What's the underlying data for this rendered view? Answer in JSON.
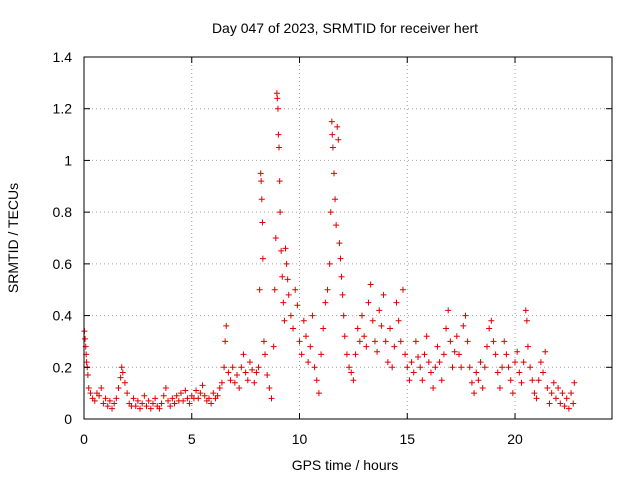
{
  "chart_data": {
    "type": "scatter",
    "title": "Day 047 of 2023, SRMTID for receiver hert",
    "xlabel": "GPS time / hours",
    "ylabel": "SRMTID / TECUs",
    "xlim": [
      0,
      24.5
    ],
    "ylim": [
      0,
      1.4
    ],
    "xticks": [
      0,
      5,
      10,
      15,
      20
    ],
    "xtick_labels": [
      "0",
      "5",
      "10",
      "15",
      "20"
    ],
    "yticks": [
      0,
      0.2,
      0.4,
      0.6,
      0.8,
      1.0,
      1.2,
      1.4
    ],
    "ytick_labels": [
      "0",
      "0.2",
      "0.4",
      "0.6",
      "0.8",
      "1",
      "1.2",
      "1.4"
    ],
    "grid": true,
    "marker": "+",
    "color": "#e00000",
    "series": [
      {
        "name": "SRMTID",
        "points": [
          [
            0.02,
            0.34
          ],
          [
            0.05,
            0.31
          ],
          [
            0.08,
            0.28
          ],
          [
            0.1,
            0.25
          ],
          [
            0.12,
            0.22
          ],
          [
            0.15,
            0.2
          ],
          [
            0.18,
            0.17
          ],
          [
            0.22,
            0.12
          ],
          [
            0.3,
            0.1
          ],
          [
            0.4,
            0.08
          ],
          [
            0.5,
            0.07
          ],
          [
            0.6,
            0.1
          ],
          [
            0.7,
            0.09
          ],
          [
            0.8,
            0.12
          ],
          [
            0.9,
            0.06
          ],
          [
            1.0,
            0.08
          ],
          [
            1.1,
            0.05
          ],
          [
            1.2,
            0.07
          ],
          [
            1.3,
            0.04
          ],
          [
            1.4,
            0.06
          ],
          [
            1.5,
            0.08
          ],
          [
            1.6,
            0.12
          ],
          [
            1.7,
            0.16
          ],
          [
            1.75,
            0.2
          ],
          [
            1.8,
            0.18
          ],
          [
            1.9,
            0.14
          ],
          [
            2.0,
            0.1
          ],
          [
            2.1,
            0.06
          ],
          [
            2.2,
            0.05
          ],
          [
            2.3,
            0.08
          ],
          [
            2.4,
            0.05
          ],
          [
            2.5,
            0.07
          ],
          [
            2.6,
            0.04
          ],
          [
            2.7,
            0.06
          ],
          [
            2.8,
            0.09
          ],
          [
            2.9,
            0.05
          ],
          [
            3.0,
            0.07
          ],
          [
            3.1,
            0.04
          ],
          [
            3.2,
            0.06
          ],
          [
            3.3,
            0.08
          ],
          [
            3.4,
            0.05
          ],
          [
            3.5,
            0.04
          ],
          [
            3.6,
            0.06
          ],
          [
            3.7,
            0.09
          ],
          [
            3.8,
            0.12
          ],
          [
            3.9,
            0.07
          ],
          [
            4.0,
            0.05
          ],
          [
            4.1,
            0.08
          ],
          [
            4.2,
            0.06
          ],
          [
            4.3,
            0.09
          ],
          [
            4.4,
            0.07
          ],
          [
            4.5,
            0.1
          ],
          [
            4.6,
            0.07
          ],
          [
            4.7,
            0.11
          ],
          [
            4.8,
            0.08
          ],
          [
            4.9,
            0.06
          ],
          [
            5.0,
            0.09
          ],
          [
            5.1,
            0.08
          ],
          [
            5.2,
            0.11
          ],
          [
            5.3,
            0.08
          ],
          [
            5.4,
            0.1
          ],
          [
            5.5,
            0.13
          ],
          [
            5.6,
            0.09
          ],
          [
            5.7,
            0.07
          ],
          [
            5.8,
            0.08
          ],
          [
            5.9,
            0.06
          ],
          [
            6.0,
            0.1
          ],
          [
            6.1,
            0.08
          ],
          [
            6.2,
            0.09
          ],
          [
            6.3,
            0.12
          ],
          [
            6.4,
            0.14
          ],
          [
            6.5,
            0.2
          ],
          [
            6.55,
            0.3
          ],
          [
            6.6,
            0.36
          ],
          [
            6.7,
            0.18
          ],
          [
            6.8,
            0.15
          ],
          [
            6.9,
            0.2
          ],
          [
            7.0,
            0.14
          ],
          [
            7.1,
            0.17
          ],
          [
            7.2,
            0.12
          ],
          [
            7.3,
            0.2
          ],
          [
            7.4,
            0.25
          ],
          [
            7.5,
            0.18
          ],
          [
            7.6,
            0.15
          ],
          [
            7.7,
            0.22
          ],
          [
            7.8,
            0.19
          ],
          [
            7.9,
            0.14
          ],
          [
            8.0,
            0.18
          ],
          [
            8.1,
            0.2
          ],
          [
            8.15,
            0.5
          ],
          [
            8.2,
            0.95
          ],
          [
            8.22,
            0.92
          ],
          [
            8.25,
            0.85
          ],
          [
            8.28,
            0.76
          ],
          [
            8.3,
            0.62
          ],
          [
            8.35,
            0.3
          ],
          [
            8.4,
            0.25
          ],
          [
            8.5,
            0.17
          ],
          [
            8.6,
            0.12
          ],
          [
            8.7,
            0.08
          ],
          [
            8.8,
            0.28
          ],
          [
            8.85,
            0.5
          ],
          [
            8.9,
            0.7
          ],
          [
            8.95,
            1.26
          ],
          [
            8.97,
            1.24
          ],
          [
            9.0,
            1.2
          ],
          [
            9.02,
            1.1
          ],
          [
            9.05,
            1.05
          ],
          [
            9.08,
            0.92
          ],
          [
            9.1,
            0.8
          ],
          [
            9.15,
            0.65
          ],
          [
            9.2,
            0.55
          ],
          [
            9.25,
            0.45
          ],
          [
            9.3,
            0.38
          ],
          [
            9.35,
            0.66
          ],
          [
            9.4,
            0.6
          ],
          [
            9.45,
            0.54
          ],
          [
            9.5,
            0.48
          ],
          [
            9.6,
            0.4
          ],
          [
            9.7,
            0.35
          ],
          [
            9.8,
            0.5
          ],
          [
            9.9,
            0.44
          ],
          [
            10.0,
            0.3
          ],
          [
            10.1,
            0.25
          ],
          [
            10.2,
            0.38
          ],
          [
            10.3,
            0.32
          ],
          [
            10.4,
            0.22
          ],
          [
            10.5,
            0.28
          ],
          [
            10.6,
            0.4
          ],
          [
            10.7,
            0.2
          ],
          [
            10.8,
            0.15
          ],
          [
            10.9,
            0.1
          ],
          [
            11.0,
            0.25
          ],
          [
            11.1,
            0.35
          ],
          [
            11.2,
            0.45
          ],
          [
            11.3,
            0.5
          ],
          [
            11.4,
            0.6
          ],
          [
            11.45,
            0.8
          ],
          [
            11.5,
            1.15
          ],
          [
            11.52,
            1.1
          ],
          [
            11.55,
            1.05
          ],
          [
            11.6,
            0.95
          ],
          [
            11.65,
            0.85
          ],
          [
            11.7,
            0.75
          ],
          [
            11.75,
            1.13
          ],
          [
            11.8,
            1.08
          ],
          [
            11.85,
            0.68
          ],
          [
            11.9,
            0.62
          ],
          [
            11.95,
            0.55
          ],
          [
            12.0,
            0.48
          ],
          [
            12.05,
            0.4
          ],
          [
            12.1,
            0.32
          ],
          [
            12.2,
            0.25
          ],
          [
            12.3,
            0.2
          ],
          [
            12.4,
            0.18
          ],
          [
            12.5,
            0.15
          ],
          [
            12.6,
            0.25
          ],
          [
            12.7,
            0.35
          ],
          [
            12.8,
            0.3
          ],
          [
            12.9,
            0.4
          ],
          [
            13.0,
            0.32
          ],
          [
            13.1,
            0.28
          ],
          [
            13.2,
            0.45
          ],
          [
            13.3,
            0.52
          ],
          [
            13.4,
            0.38
          ],
          [
            13.5,
            0.3
          ],
          [
            13.6,
            0.26
          ],
          [
            13.7,
            0.42
          ],
          [
            13.8,
            0.36
          ],
          [
            13.9,
            0.48
          ],
          [
            14.0,
            0.3
          ],
          [
            14.1,
            0.22
          ],
          [
            14.2,
            0.35
          ],
          [
            14.3,
            0.2
          ],
          [
            14.4,
            0.28
          ],
          [
            14.5,
            0.45
          ],
          [
            14.6,
            0.38
          ],
          [
            14.7,
            0.3
          ],
          [
            14.8,
            0.5
          ],
          [
            14.9,
            0.25
          ],
          [
            15.0,
            0.2
          ],
          [
            15.1,
            0.15
          ],
          [
            15.2,
            0.22
          ],
          [
            15.3,
            0.18
          ],
          [
            15.4,
            0.3
          ],
          [
            15.5,
            0.24
          ],
          [
            15.6,
            0.2
          ],
          [
            15.7,
            0.15
          ],
          [
            15.8,
            0.25
          ],
          [
            15.9,
            0.32
          ],
          [
            16.0,
            0.22
          ],
          [
            16.1,
            0.18
          ],
          [
            16.2,
            0.12
          ],
          [
            16.3,
            0.2
          ],
          [
            16.4,
            0.28
          ],
          [
            16.5,
            0.22
          ],
          [
            16.6,
            0.15
          ],
          [
            16.7,
            0.25
          ],
          [
            16.8,
            0.35
          ],
          [
            16.9,
            0.42
          ],
          [
            17.0,
            0.3
          ],
          [
            17.1,
            0.2
          ],
          [
            17.2,
            0.26
          ],
          [
            17.3,
            0.32
          ],
          [
            17.4,
            0.25
          ],
          [
            17.5,
            0.2
          ],
          [
            17.6,
            0.36
          ],
          [
            17.7,
            0.4
          ],
          [
            17.8,
            0.3
          ],
          [
            17.9,
            0.2
          ],
          [
            18.0,
            0.14
          ],
          [
            18.1,
            0.1
          ],
          [
            18.2,
            0.18
          ],
          [
            18.3,
            0.15
          ],
          [
            18.4,
            0.22
          ],
          [
            18.5,
            0.12
          ],
          [
            18.6,
            0.2
          ],
          [
            18.7,
            0.28
          ],
          [
            18.8,
            0.35
          ],
          [
            18.9,
            0.38
          ],
          [
            19.0,
            0.3
          ],
          [
            19.1,
            0.25
          ],
          [
            19.2,
            0.18
          ],
          [
            19.3,
            0.12
          ],
          [
            19.4,
            0.2
          ],
          [
            19.5,
            0.3
          ],
          [
            19.6,
            0.25
          ],
          [
            19.7,
            0.2
          ],
          [
            19.8,
            0.15
          ],
          [
            19.9,
            0.1
          ],
          [
            20.0,
            0.22
          ],
          [
            20.1,
            0.26
          ],
          [
            20.2,
            0.18
          ],
          [
            20.3,
            0.14
          ],
          [
            20.4,
            0.22
          ],
          [
            20.5,
            0.42
          ],
          [
            20.55,
            0.38
          ],
          [
            20.6,
            0.28
          ],
          [
            20.7,
            0.2
          ],
          [
            20.8,
            0.15
          ],
          [
            20.9,
            0.1
          ],
          [
            21.0,
            0.08
          ],
          [
            21.1,
            0.15
          ],
          [
            21.2,
            0.22
          ],
          [
            21.3,
            0.18
          ],
          [
            21.4,
            0.26
          ],
          [
            21.5,
            0.12
          ],
          [
            21.6,
            0.06
          ],
          [
            21.7,
            0.1
          ],
          [
            21.8,
            0.14
          ],
          [
            21.9,
            0.08
          ],
          [
            22.0,
            0.12
          ],
          [
            22.1,
            0.06
          ],
          [
            22.2,
            0.1
          ],
          [
            22.3,
            0.05
          ],
          [
            22.4,
            0.08
          ],
          [
            22.5,
            0.04
          ],
          [
            22.6,
            0.1
          ],
          [
            22.7,
            0.06
          ],
          [
            22.75,
            0.14
          ]
        ]
      }
    ]
  }
}
